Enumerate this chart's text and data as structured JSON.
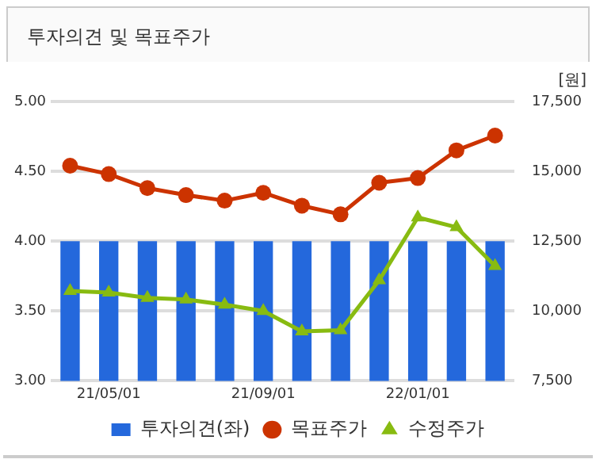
{
  "chart_data": {
    "type": "bar",
    "title": "투자의견 및 목표주가",
    "categories": [
      null,
      "21/05/01",
      null,
      null,
      null,
      "21/09/01",
      null,
      null,
      null,
      "22/01/01",
      null,
      null
    ],
    "series": [
      {
        "name": "투자의견(좌)",
        "color": "#2468dc",
        "values": [
          4,
          4,
          4,
          4,
          4,
          4,
          4,
          4,
          4,
          4,
          4,
          4
        ]
      },
      {
        "name": "목표주가",
        "type": "line",
        "axis": "y2",
        "marker": "circle",
        "color": "#cc3300",
        "values": [
          15200,
          14900,
          14400,
          14150,
          13950,
          14230,
          13770,
          13460,
          14590,
          14760,
          15750,
          16280
        ]
      },
      {
        "name": "수정주가",
        "type": "line",
        "axis": "y2",
        "marker": "triangle",
        "color": "#88bb11",
        "values": [
          10720,
          10660,
          10470,
          10410,
          10230,
          10000,
          9270,
          9310,
          11100,
          13350,
          13000,
          11610
        ]
      }
    ],
    "ylim": [
      3,
      5
    ],
    "yticks": [
      {
        "value": 3,
        "label": "3.00"
      },
      {
        "value": 3.5,
        "label": "3.50"
      },
      {
        "value": 4,
        "label": "4.00"
      },
      {
        "value": 4.5,
        "label": "4.50"
      },
      {
        "value": 5,
        "label": "5.00"
      }
    ],
    "y2lim": [
      7500,
      17500
    ],
    "y2ticks": [
      {
        "value": 7500,
        "label": "7,500"
      },
      {
        "value": 10000,
        "label": "10,000"
      },
      {
        "value": 12500,
        "label": "12,500"
      },
      {
        "value": 15000,
        "label": "15,000"
      },
      {
        "value": 17500,
        "label": "17,500"
      }
    ],
    "y2label": "[원]",
    "grid": "y",
    "legend": "bottom"
  }
}
